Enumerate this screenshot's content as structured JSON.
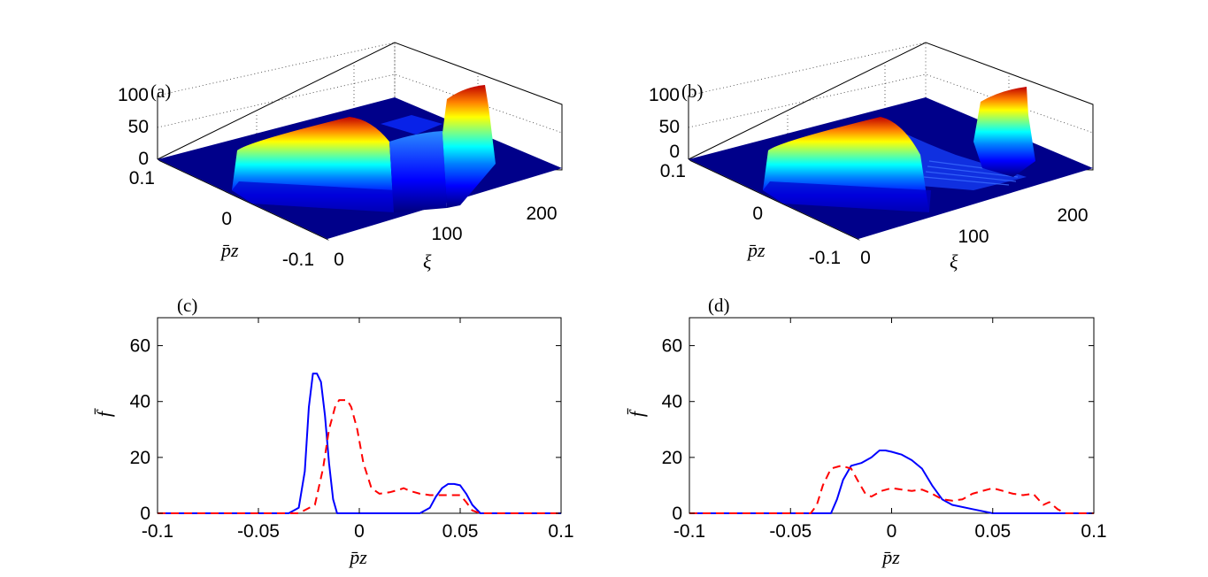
{
  "chart_data": [
    {
      "panel": "(a)",
      "type": "surface",
      "x_axis": {
        "label": "ξ",
        "ticks": [
          "0",
          "100",
          "200"
        ],
        "range": [
          0,
          240
        ]
      },
      "y_axis": {
        "label": "p̄z",
        "ticks": [
          "0.1",
          "0",
          "-0.1"
        ],
        "range": [
          -0.1,
          0.1
        ]
      },
      "z_axis": {
        "ticks": [
          "0",
          "50",
          "100"
        ],
        "range": [
          0,
          100
        ]
      },
      "colormap": "jet",
      "features": [
        {
          "xi": [
            25,
            110
          ],
          "pz": [
            -0.03,
            -0.012
          ],
          "height": 50
        },
        {
          "xi": [
            110,
            165
          ],
          "pz": [
            -0.02,
            0.0
          ],
          "height": 35
        },
        {
          "xi": [
            165,
            200
          ],
          "pz": [
            0.04,
            0.055
          ],
          "height": 95
        }
      ]
    },
    {
      "panel": "(b)",
      "type": "surface",
      "x_axis": {
        "label": "ξ",
        "ticks": [
          "0",
          "100",
          "200"
        ],
        "range": [
          0,
          240
        ]
      },
      "y_axis": {
        "label": "p̄z",
        "ticks": [
          "0.1",
          "0",
          "-0.1"
        ],
        "range": [
          -0.1,
          0.1
        ]
      },
      "z_axis": {
        "ticks": [
          "0",
          "50",
          "100"
        ],
        "range": [
          0,
          100
        ]
      },
      "colormap": "jet",
      "features": [
        {
          "xi": [
            25,
            110
          ],
          "pz": [
            -0.03,
            -0.012
          ],
          "height": 50
        },
        {
          "xi": [
            110,
            180
          ],
          "pz": [
            -0.04,
            0.06
          ],
          "height": 15
        },
        {
          "xi": [
            175,
            205
          ],
          "pz": [
            0.0,
            0.03
          ],
          "height": 95
        }
      ]
    },
    {
      "panel": "(c)",
      "type": "line",
      "xlabel": "p̄z",
      "ylabel": "f̄",
      "xlim": [
        -0.1,
        0.1
      ],
      "ylim": [
        0,
        70
      ],
      "xticks": [
        "-0.1",
        "-0.05",
        "0",
        "0.05",
        "0.1"
      ],
      "yticks": [
        "0",
        "20",
        "40",
        "60"
      ],
      "series": [
        {
          "name": "solid",
          "color": "#0000ff",
          "dash": "none",
          "x": [
            -0.1,
            -0.06,
            -0.035,
            -0.03,
            -0.027,
            -0.025,
            -0.023,
            -0.021,
            -0.019,
            -0.017,
            -0.015,
            -0.013,
            -0.011,
            0.0,
            0.03,
            0.035,
            0.038,
            0.041,
            0.044,
            0.047,
            0.05,
            0.053,
            0.056,
            0.06,
            0.1
          ],
          "y": [
            0,
            0,
            0,
            2,
            15,
            38,
            50,
            50,
            47,
            35,
            18,
            5,
            0,
            0,
            0,
            2,
            6,
            9,
            10.5,
            10.5,
            10,
            7,
            3,
            0,
            0
          ]
        },
        {
          "name": "dashed",
          "color": "#ff0000",
          "dash": "9 6",
          "x": [
            -0.1,
            -0.05,
            -0.03,
            -0.022,
            -0.018,
            -0.015,
            -0.012,
            -0.01,
            -0.006,
            -0.004,
            -0.001,
            0.002,
            0.006,
            0.01,
            0.015,
            0.02,
            0.022,
            0.025,
            0.03,
            0.035,
            0.04,
            0.045,
            0.05,
            0.053,
            0.056,
            0.06,
            0.1
          ],
          "y": [
            0,
            0,
            0,
            3,
            16,
            30,
            38,
            40.5,
            40.5,
            38,
            30,
            18,
            9,
            7,
            7.5,
            8.5,
            9,
            8,
            7,
            6.5,
            6.5,
            6.5,
            6.5,
            4,
            1,
            0,
            0
          ]
        }
      ]
    },
    {
      "panel": "(d)",
      "type": "line",
      "xlabel": "p̄z",
      "ylabel": "f̄",
      "xlim": [
        -0.1,
        0.1
      ],
      "ylim": [
        0,
        70
      ],
      "xticks": [
        "-0.1",
        "-0.05",
        "0",
        "0.05",
        "0.1"
      ],
      "yticks": [
        "0",
        "20",
        "40",
        "60"
      ],
      "series": [
        {
          "name": "solid",
          "color": "#0000ff",
          "dash": "none",
          "x": [
            -0.1,
            -0.03,
            -0.027,
            -0.024,
            -0.02,
            -0.015,
            -0.01,
            -0.006,
            -0.003,
            0.0,
            0.005,
            0.01,
            0.015,
            0.02,
            0.025,
            0.03,
            0.04,
            0.05,
            0.1
          ],
          "y": [
            0,
            0,
            5,
            12,
            17,
            18,
            20,
            22.5,
            22.5,
            22,
            21,
            19,
            16,
            10,
            5,
            3,
            1.5,
            0,
            0
          ]
        },
        {
          "name": "dashed",
          "color": "#ff0000",
          "dash": "9 6",
          "x": [
            -0.1,
            -0.04,
            -0.037,
            -0.034,
            -0.03,
            -0.025,
            -0.02,
            -0.017,
            -0.013,
            -0.01,
            -0.005,
            0.0,
            0.005,
            0.01,
            0.015,
            0.02,
            0.025,
            0.03,
            0.035,
            0.04,
            0.045,
            0.05,
            0.055,
            0.06,
            0.065,
            0.07,
            0.075,
            0.078,
            0.082,
            0.086,
            0.1
          ],
          "y": [
            0,
            0,
            3,
            10,
            16,
            17,
            16,
            12,
            7,
            6,
            8,
            9,
            8.5,
            8,
            8.5,
            7,
            5,
            4.5,
            5,
            7,
            8,
            9,
            8,
            7,
            6.5,
            7,
            3,
            4,
            1.5,
            0,
            0
          ]
        }
      ]
    }
  ]
}
